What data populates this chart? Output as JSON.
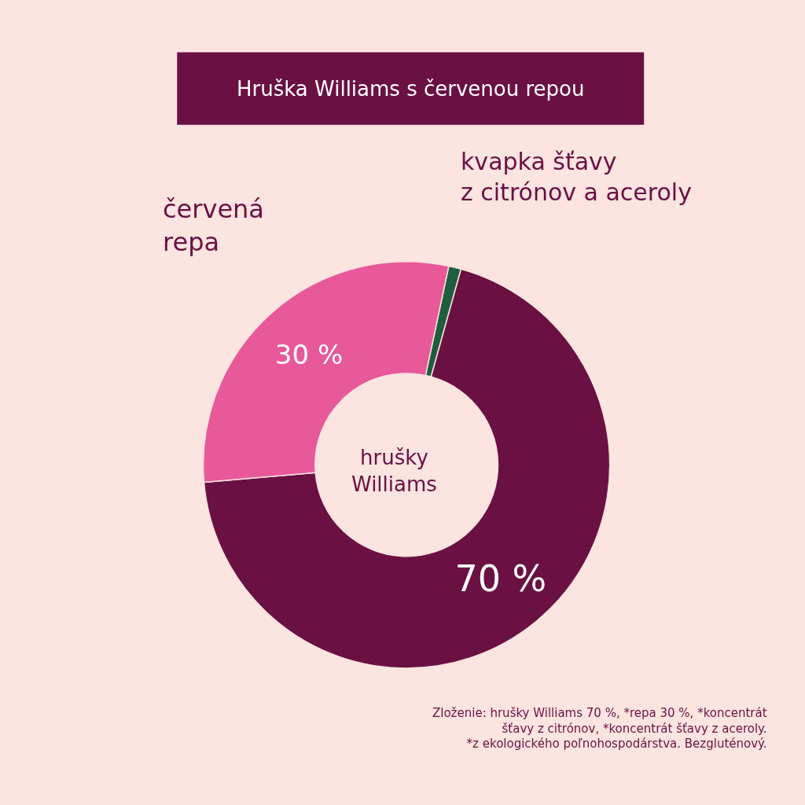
{
  "chart_data": {
    "type": "donut",
    "title": "Hruška Williams s červenou repou",
    "categories": [
      "kvapka šťavy\nz citrónov a aceroly",
      "hrušky\nWilliams",
      "červená\nrepa"
    ],
    "values": [
      1,
      70,
      30
    ],
    "value_labels": [
      null,
      "70 %",
      "30 %"
    ],
    "colors": [
      "#1e5e3f",
      "#6a1042",
      "#e8599a"
    ],
    "legend": false,
    "annotations": [
      "Zloženie: hrušky Williams 70 %, *repa 30 %, *koncentrát\nšťavy z citrónov, *koncentrát šťavy z aceroly.\n*z ekologického poľnohospodárstva. Bezgluténový."
    ]
  }
}
